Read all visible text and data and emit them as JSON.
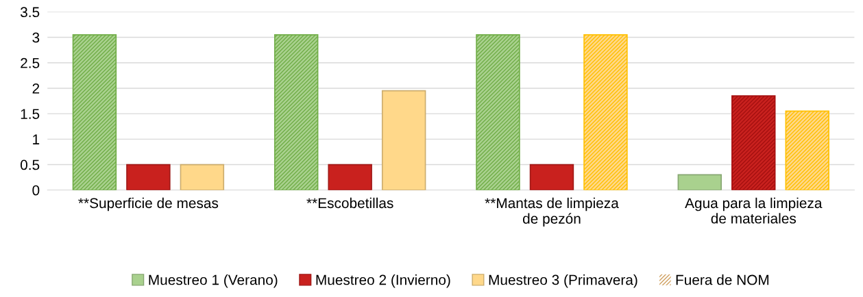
{
  "chart_data": {
    "type": "bar",
    "categories": [
      "**Superficie de mesas",
      "**Escobetillas",
      "**Mantas de limpieza\nde pezón",
      "Agua para la limpieza\nde materiales"
    ],
    "series": [
      {
        "name": "Muestreo 1 (Verano)",
        "color": "#a9d18e",
        "colors": [
          "#70ad47",
          "#70ad47",
          "#70ad47",
          "#a9d18e"
        ],
        "values": [
          3.05,
          3.05,
          3.05,
          0.3
        ]
      },
      {
        "name": "Muestreo 2 (Invierno)",
        "color": "#c9211e",
        "colors": [
          "#c9211e",
          "#c9211e",
          "#c9211e",
          "#a50f0f"
        ],
        "values": [
          0.5,
          0.5,
          0.5,
          1.85
        ]
      },
      {
        "name": "Muestreo 3 (Primavera)",
        "color": "#ffd88a",
        "colors": [
          "#ffd88a",
          "#ffd88a",
          "#ffc000",
          "#ffc000"
        ],
        "values": [
          0.5,
          1.95,
          3.05,
          1.55
        ]
      }
    ],
    "annotations": [
      "Fuera de NOM"
    ],
    "ylim": [
      0,
      3.5
    ],
    "yticks": [
      0,
      0.5,
      1,
      1.5,
      2,
      2.5,
      3,
      3.5
    ],
    "grid": "y",
    "legend": "bottom"
  }
}
